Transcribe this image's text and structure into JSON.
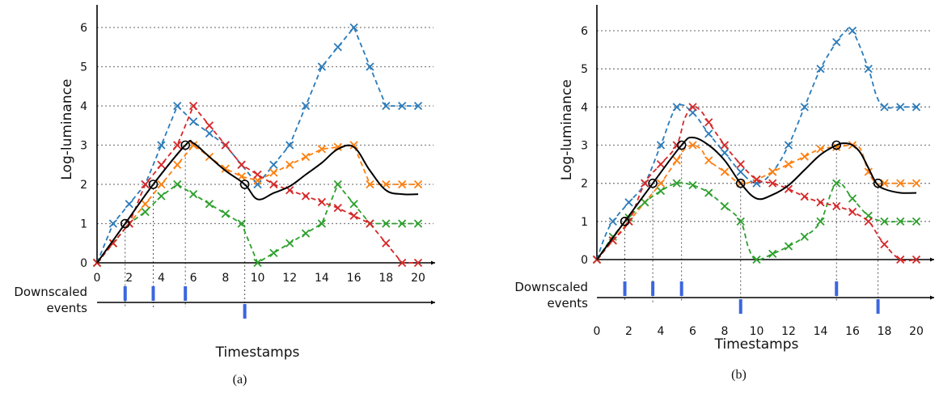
{
  "colors": {
    "blue": "#2b7bba",
    "orange": "#ff7f0e",
    "green": "#2ca02c",
    "red": "#d62728",
    "black": "#000000",
    "event": "#3b66e0",
    "grid": "#808080"
  },
  "chart_data": [
    {
      "type": "line",
      "caption": "(a)",
      "xlabel": "Timestamps",
      "ylabel": "Log-luminance",
      "events_label": "Downscaled events",
      "xlim": [
        0,
        21
      ],
      "ylim": [
        0,
        6.6
      ],
      "xticks": [
        0,
        2,
        4,
        6,
        8,
        10,
        12,
        14,
        16,
        18,
        20
      ],
      "yticks": [
        0,
        1,
        2,
        3,
        4,
        5,
        6
      ],
      "grid": "horizontal dotted",
      "series": [
        {
          "color": "blue",
          "marker": "x",
          "style": "dashed",
          "x": [
            0,
            1,
            2,
            3,
            4,
            5,
            6,
            7,
            8,
            9,
            10,
            11,
            12,
            13,
            14,
            15,
            16,
            17,
            18,
            19,
            20
          ],
          "y": [
            0,
            1,
            1.5,
            2,
            3,
            4,
            3.6,
            3.3,
            3,
            2.5,
            2,
            2.5,
            3,
            4,
            5,
            5.5,
            6,
            5,
            4,
            4,
            4
          ]
        },
        {
          "color": "orange",
          "marker": "x",
          "style": "dashed",
          "x": [
            0,
            1,
            2,
            3,
            4,
            5,
            6,
            7,
            8,
            9,
            10,
            11,
            12,
            13,
            14,
            15,
            16,
            17,
            18,
            19,
            20
          ],
          "y": [
            0,
            0.5,
            1,
            1.5,
            2,
            2.5,
            3,
            2.7,
            2.4,
            2.2,
            2.1,
            2.3,
            2.5,
            2.7,
            2.9,
            2.95,
            3,
            2,
            2,
            2,
            2
          ]
        },
        {
          "color": "green",
          "marker": "x",
          "style": "dashed",
          "x": [
            0,
            1,
            2,
            3,
            4,
            5,
            6,
            7,
            8,
            9,
            10,
            11,
            12,
            13,
            14,
            15,
            16,
            17,
            18,
            19,
            20
          ],
          "y": [
            0,
            0.5,
            1,
            1.3,
            1.7,
            2,
            1.75,
            1.5,
            1.25,
            1,
            0,
            0.25,
            0.5,
            0.75,
            1,
            2,
            1.5,
            1,
            1,
            1,
            1
          ]
        },
        {
          "color": "red",
          "marker": "x",
          "style": "dashed",
          "x": [
            0,
            1,
            2,
            3,
            4,
            5,
            6,
            7,
            8,
            9,
            10,
            11,
            12,
            13,
            14,
            15,
            16,
            17,
            18,
            19,
            20
          ],
          "y": [
            0,
            0.5,
            1,
            2,
            2.5,
            3,
            4,
            3.5,
            3,
            2.5,
            2.25,
            2,
            1.85,
            1.7,
            1.55,
            1.4,
            1.2,
            1,
            0.5,
            0,
            0
          ]
        },
        {
          "color": "black",
          "marker": "none",
          "style": "solid",
          "x": [
            0,
            1.75,
            3.5,
            5.5,
            6,
            7,
            8,
            9.2,
            10,
            11,
            12,
            13,
            14,
            15,
            16,
            17,
            18,
            19,
            20
          ],
          "y": [
            0,
            1,
            2,
            3,
            3.05,
            2.7,
            2.35,
            2,
            1.62,
            1.78,
            1.95,
            2.25,
            2.55,
            2.9,
            2.95,
            2.35,
            1.85,
            1.75,
            1.75
          ]
        }
      ],
      "markers_circle": {
        "x": [
          1.75,
          3.5,
          5.5,
          9.2
        ],
        "y": [
          1,
          2,
          3,
          2
        ]
      },
      "events": [
        {
          "t": 1.75,
          "polarity": "up"
        },
        {
          "t": 3.5,
          "polarity": "up"
        },
        {
          "t": 5.5,
          "polarity": "up"
        },
        {
          "t": 9.2,
          "polarity": "down"
        }
      ]
    },
    {
      "type": "line",
      "caption": "(b)",
      "xlabel": "Timestamps",
      "ylabel": "Log-luminance",
      "events_label": "Downscaled events",
      "xlim": [
        0,
        21
      ],
      "ylim": [
        0,
        6.6
      ],
      "xticks": [
        0,
        2,
        4,
        6,
        8,
        10,
        12,
        14,
        16,
        18,
        20
      ],
      "yticks": [
        0,
        1,
        2,
        3,
        4,
        5,
        6
      ],
      "grid": "horizontal dotted",
      "series": [
        {
          "color": "blue",
          "marker": "x",
          "style": "dashed",
          "x": [
            0,
            0.5,
            1,
            2,
            3,
            4,
            5,
            6,
            7,
            8,
            9,
            10,
            11,
            12,
            13,
            14,
            15,
            15.5,
            16,
            17,
            17.5,
            18,
            19,
            20
          ],
          "y": [
            0,
            0.6,
            1,
            1.5,
            2,
            3,
            4,
            3.85,
            3.3,
            2.8,
            2.3,
            2,
            2.3,
            3,
            4,
            5,
            5.7,
            5.95,
            6,
            5,
            4.3,
            4,
            4,
            4
          ]
        },
        {
          "color": "orange",
          "marker": "x",
          "style": "dashed",
          "x": [
            0,
            1,
            2,
            3,
            4,
            4.5,
            5,
            5.5,
            6,
            6.5,
            7,
            8,
            9,
            10,
            11,
            12,
            13,
            14,
            15,
            16,
            16.5,
            17,
            17.5,
            18,
            19,
            20
          ],
          "y": [
            0,
            0.5,
            1,
            1.5,
            2,
            2.3,
            2.6,
            2.9,
            3,
            2.9,
            2.6,
            2.3,
            2,
            2.1,
            2.3,
            2.5,
            2.7,
            2.9,
            2.95,
            3,
            2.9,
            2.3,
            2,
            2,
            2,
            2
          ]
        },
        {
          "color": "green",
          "marker": "x",
          "style": "dashed",
          "x": [
            0,
            1,
            2,
            3,
            4,
            5,
            6,
            7,
            8,
            9,
            9.5,
            10,
            11,
            12,
            13,
            14,
            15,
            16,
            17,
            18,
            19,
            20
          ],
          "y": [
            0,
            0.6,
            1.1,
            1.5,
            1.8,
            2,
            1.95,
            1.75,
            1.4,
            1,
            0.3,
            0,
            0.15,
            0.35,
            0.6,
            1,
            2,
            1.6,
            1.15,
            1,
            1,
            1
          ]
        },
        {
          "color": "red",
          "marker": "x",
          "style": "dashed",
          "x": [
            0,
            1,
            2,
            3,
            4,
            5,
            5.5,
            6,
            6.5,
            7,
            8,
            9,
            10,
            11,
            12,
            13,
            14,
            15,
            16,
            17,
            17.5,
            18,
            19,
            20
          ],
          "y": [
            0,
            0.5,
            1,
            2,
            2.5,
            3,
            3.7,
            4,
            3.9,
            3.6,
            3,
            2.5,
            2.1,
            2,
            1.85,
            1.65,
            1.5,
            1.4,
            1.25,
            1,
            0.7,
            0.4,
            0,
            0
          ]
        },
        {
          "color": "black",
          "marker": "none",
          "style": "solid",
          "x": [
            0,
            1.75,
            3.5,
            5.3,
            6,
            7,
            8,
            9,
            10,
            11,
            12,
            13,
            14,
            15,
            15.5,
            16,
            16.5,
            17,
            17.5,
            18,
            19,
            20
          ],
          "y": [
            0,
            1,
            2,
            3,
            3.2,
            3,
            2.6,
            2,
            1.6,
            1.7,
            1.95,
            2.35,
            2.75,
            3,
            3.05,
            3.0,
            2.8,
            2.4,
            2.0,
            1.85,
            1.75,
            1.75
          ]
        }
      ],
      "markers_circle": {
        "x": [
          1.75,
          3.5,
          5.3,
          9,
          15,
          17.6
        ],
        "y": [
          1,
          2,
          3,
          2,
          3,
          2
        ]
      },
      "events": [
        {
          "t": 1.75,
          "polarity": "up"
        },
        {
          "t": 3.5,
          "polarity": "up"
        },
        {
          "t": 5.3,
          "polarity": "up"
        },
        {
          "t": 9,
          "polarity": "down"
        },
        {
          "t": 15,
          "polarity": "up"
        },
        {
          "t": 17.6,
          "polarity": "down"
        }
      ]
    }
  ]
}
